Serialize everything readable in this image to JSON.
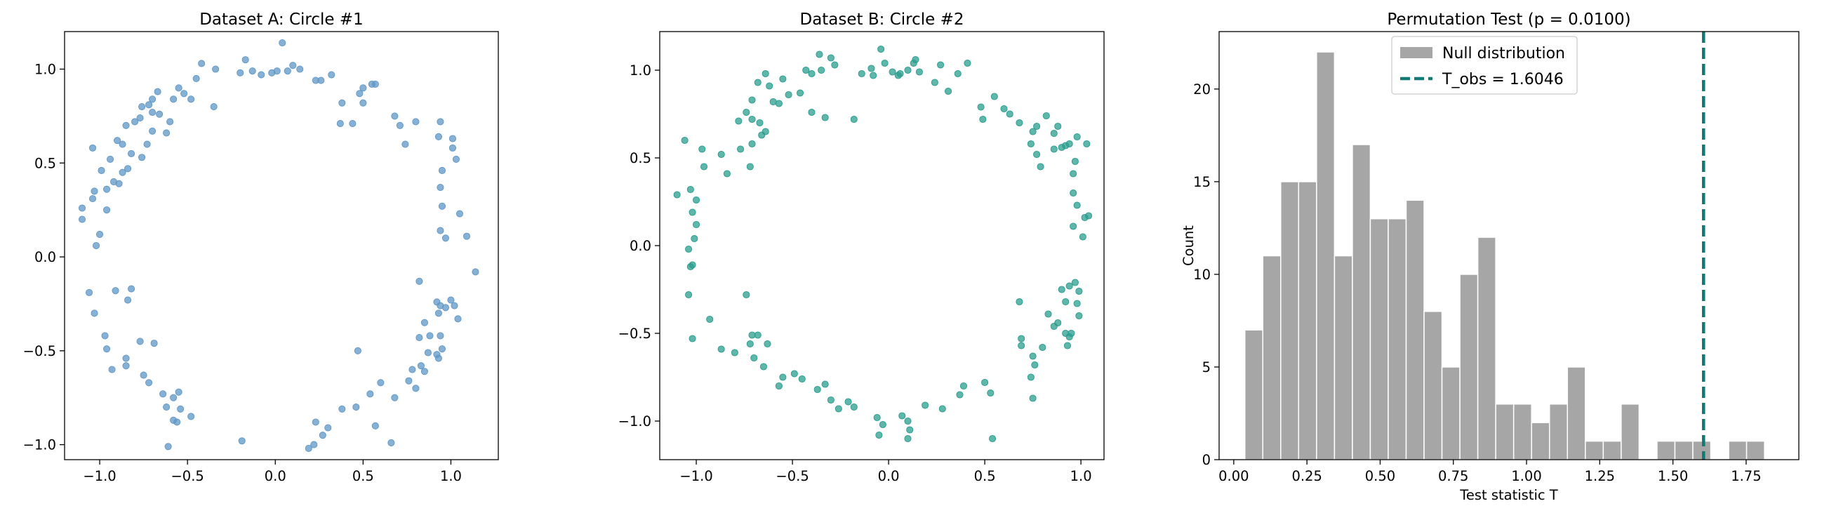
{
  "chart_data": [
    {
      "type": "scatter",
      "title": "Dataset A: Circle #1",
      "xlabel": "",
      "ylabel": "",
      "xlim": [
        -1.2,
        1.27
      ],
      "ylim": [
        -1.08,
        1.2
      ],
      "xticks": [
        -1.0,
        -0.5,
        0.0,
        0.5,
        1.0
      ],
      "xtick_labels": [
        "−1.0",
        "−0.5",
        "0.0",
        "0.5",
        "1.0"
      ],
      "yticks": [
        -1.0,
        -0.5,
        0.0,
        0.5,
        1.0
      ],
      "ytick_labels": [
        "−1.0",
        "−0.5",
        "0.0",
        "0.5",
        "1.0"
      ],
      "color": "#5f97c6",
      "points": [
        [
          0.04,
          1.14
        ],
        [
          -0.17,
          1.05
        ],
        [
          -0.13,
          0.99
        ],
        [
          -0.08,
          0.97
        ],
        [
          -0.02,
          0.98
        ],
        [
          0.01,
          0.99
        ],
        [
          0.07,
          0.99
        ],
        [
          0.1,
          1.02
        ],
        [
          -0.42,
          1.03
        ],
        [
          -0.34,
          1.0
        ],
        [
          -0.45,
          0.95
        ],
        [
          -0.52,
          0.87
        ],
        [
          -0.55,
          0.9
        ],
        [
          -0.48,
          0.84
        ],
        [
          -0.58,
          0.84
        ],
        [
          -0.35,
          0.8
        ],
        [
          -0.67,
          0.88
        ],
        [
          -0.7,
          0.84
        ],
        [
          -0.72,
          0.81
        ],
        [
          -0.66,
          0.76
        ],
        [
          -0.62,
          0.66
        ],
        [
          -0.6,
          0.72
        ],
        [
          -0.7,
          0.77
        ],
        [
          -0.76,
          0.8
        ],
        [
          -0.77,
          0.74
        ],
        [
          -0.8,
          0.72
        ],
        [
          -0.85,
          0.7
        ],
        [
          -0.87,
          0.6
        ],
        [
          -0.9,
          0.62
        ],
        [
          -0.94,
          0.52
        ],
        [
          -0.84,
          0.47
        ],
        [
          -0.87,
          0.45
        ],
        [
          -0.99,
          0.46
        ],
        [
          -0.92,
          0.4
        ],
        [
          -0.96,
          0.36
        ],
        [
          -1.03,
          0.35
        ],
        [
          -1.04,
          0.31
        ],
        [
          -0.96,
          0.25
        ],
        [
          -0.76,
          0.53
        ],
        [
          -0.73,
          0.6
        ],
        [
          -0.7,
          0.67
        ],
        [
          -1.04,
          0.58
        ],
        [
          -1.1,
          0.26
        ],
        [
          -1.1,
          0.2
        ],
        [
          -1.0,
          0.12
        ],
        [
          -1.02,
          0.06
        ],
        [
          -0.89,
          0.39
        ],
        [
          -0.82,
          0.55
        ],
        [
          -1.06,
          -0.19
        ],
        [
          -0.91,
          -0.18
        ],
        [
          -0.84,
          -0.23
        ],
        [
          -1.03,
          -0.3
        ],
        [
          -0.97,
          -0.42
        ],
        [
          -0.96,
          -0.49
        ],
        [
          -0.85,
          -0.54
        ],
        [
          -0.85,
          -0.58
        ],
        [
          -0.93,
          -0.6
        ],
        [
          -0.77,
          -0.45
        ],
        [
          -0.69,
          -0.46
        ],
        [
          -0.75,
          -0.63
        ],
        [
          -0.72,
          -0.67
        ],
        [
          -0.64,
          -0.73
        ],
        [
          -0.58,
          -0.75
        ],
        [
          -0.55,
          -0.72
        ],
        [
          -0.62,
          -0.8
        ],
        [
          -0.54,
          -0.81
        ],
        [
          -0.58,
          -0.87
        ],
        [
          -0.56,
          -0.88
        ],
        [
          -0.48,
          -0.85
        ],
        [
          -0.61,
          -1.01
        ],
        [
          -0.82,
          -0.17
        ],
        [
          -0.19,
          -0.98
        ],
        [
          0.19,
          -1.02
        ],
        [
          0.22,
          -1.0
        ],
        [
          0.27,
          -0.95
        ],
        [
          0.23,
          -0.88
        ],
        [
          0.3,
          -0.91
        ],
        [
          0.38,
          -0.81
        ],
        [
          0.46,
          -0.8
        ],
        [
          0.54,
          -0.73
        ],
        [
          0.57,
          -0.9
        ],
        [
          0.6,
          -0.67
        ],
        [
          0.68,
          -0.75
        ],
        [
          0.66,
          -0.99
        ],
        [
          0.47,
          -0.5
        ],
        [
          0.76,
          -0.66
        ],
        [
          0.78,
          -0.6
        ],
        [
          0.83,
          -0.58
        ],
        [
          0.85,
          -0.61
        ],
        [
          0.8,
          -0.7
        ],
        [
          0.87,
          -0.51
        ],
        [
          0.92,
          -0.52
        ],
        [
          0.94,
          -0.42
        ],
        [
          0.95,
          -0.49
        ],
        [
          0.93,
          -0.54
        ],
        [
          0.82,
          -0.43
        ],
        [
          0.85,
          -0.35
        ],
        [
          0.88,
          -0.42
        ],
        [
          0.82,
          -0.13
        ],
        [
          0.97,
          -0.27
        ],
        [
          1.0,
          -0.23
        ],
        [
          1.02,
          -0.26
        ],
        [
          1.04,
          -0.33
        ],
        [
          0.93,
          -0.3
        ],
        [
          0.92,
          -0.24
        ],
        [
          0.94,
          -0.26
        ],
        [
          1.14,
          -0.08
        ],
        [
          1.09,
          0.11
        ],
        [
          1.05,
          0.23
        ],
        [
          0.97,
          0.1
        ],
        [
          0.94,
          0.14
        ],
        [
          0.95,
          0.27
        ],
        [
          0.94,
          0.37
        ],
        [
          0.95,
          0.46
        ],
        [
          1.03,
          0.52
        ],
        [
          1.01,
          0.58
        ],
        [
          1.01,
          0.63
        ],
        [
          0.93,
          0.64
        ],
        [
          0.94,
          0.72
        ],
        [
          0.8,
          0.72
        ],
        [
          0.74,
          0.6
        ],
        [
          0.71,
          0.7
        ],
        [
          0.68,
          0.75
        ],
        [
          0.5,
          0.82
        ],
        [
          0.5,
          0.9
        ],
        [
          0.55,
          0.92
        ],
        [
          0.57,
          0.92
        ],
        [
          0.48,
          0.87
        ],
        [
          0.37,
          0.71
        ],
        [
          0.44,
          0.71
        ],
        [
          0.32,
          0.97
        ],
        [
          0.26,
          0.94
        ],
        [
          0.23,
          0.94
        ],
        [
          0.38,
          0.82
        ],
        [
          0.14,
          1.0
        ],
        [
          -0.2,
          0.98
        ]
      ]
    },
    {
      "type": "scatter",
      "title": "Dataset B: Circle #2",
      "xlabel": "",
      "ylabel": "",
      "xlim": [
        -1.19,
        1.12
      ],
      "ylim": [
        -1.22,
        1.22
      ],
      "xticks": [
        -1.0,
        -0.5,
        0.0,
        0.5,
        1.0
      ],
      "xtick_labels": [
        "−1.0",
        "−0.5",
        "0.0",
        "0.5",
        "1.0"
      ],
      "yticks": [
        -1.0,
        -0.5,
        0.0,
        0.5,
        1.0
      ],
      "ytick_labels": [
        "−1.0",
        "−0.5",
        "0.0",
        "0.5",
        "1.0"
      ],
      "color": "#2a9d8f",
      "points": [
        [
          -0.04,
          1.12
        ],
        [
          -0.09,
          1.01
        ],
        [
          -0.02,
          1.04
        ],
        [
          0.02,
          0.99
        ],
        [
          0.06,
          0.98
        ],
        [
          0.1,
          1.0
        ],
        [
          0.13,
          1.04
        ],
        [
          0.14,
          1.06
        ],
        [
          0.16,
          0.99
        ],
        [
          0.27,
          1.03
        ],
        [
          0.36,
          0.98
        ],
        [
          0.41,
          1.04
        ],
        [
          0.31,
          0.88
        ],
        [
          -0.36,
          1.09
        ],
        [
          -0.3,
          1.07
        ],
        [
          -0.28,
          1.03
        ],
        [
          -0.35,
          1.0
        ],
        [
          -0.43,
          1.0
        ],
        [
          -0.4,
          0.98
        ],
        [
          -0.46,
          0.87
        ],
        [
          -0.52,
          0.86
        ],
        [
          -0.55,
          0.95
        ],
        [
          -0.62,
          0.91
        ],
        [
          -0.6,
          0.82
        ],
        [
          -0.68,
          0.93
        ],
        [
          -0.64,
          0.98
        ],
        [
          -0.71,
          0.83
        ],
        [
          -0.67,
          0.7
        ],
        [
          -0.64,
          0.65
        ],
        [
          -0.71,
          0.72
        ],
        [
          -0.74,
          0.76
        ],
        [
          -0.78,
          0.71
        ],
        [
          -0.77,
          0.55
        ],
        [
          -0.71,
          0.58
        ],
        [
          -0.72,
          0.45
        ],
        [
          -0.84,
          0.41
        ],
        [
          -0.87,
          0.52
        ],
        [
          -0.97,
          0.55
        ],
        [
          -0.96,
          0.45
        ],
        [
          -1.1,
          0.29
        ],
        [
          -1.03,
          0.32
        ],
        [
          -1.0,
          0.26
        ],
        [
          -1.02,
          0.19
        ],
        [
          -1.0,
          0.12
        ],
        [
          -1.06,
          0.6
        ],
        [
          -1.04,
          -0.02
        ],
        [
          -1.02,
          -0.11
        ],
        [
          -1.03,
          -0.12
        ],
        [
          -1.01,
          0.04
        ],
        [
          -1.04,
          -0.28
        ],
        [
          -1.02,
          -0.53
        ],
        [
          -0.93,
          -0.42
        ],
        [
          -0.87,
          -0.59
        ],
        [
          -0.8,
          -0.61
        ],
        [
          -0.72,
          -0.56
        ],
        [
          -0.71,
          -0.51
        ],
        [
          -0.7,
          -0.64
        ],
        [
          -0.68,
          -0.51
        ],
        [
          -0.74,
          -0.28
        ],
        [
          -0.63,
          -0.56
        ],
        [
          -0.65,
          -0.69
        ],
        [
          -0.57,
          -0.8
        ],
        [
          -0.55,
          -0.75
        ],
        [
          -0.49,
          -0.73
        ],
        [
          -0.45,
          -0.76
        ],
        [
          -0.37,
          -0.82
        ],
        [
          -0.33,
          -0.79
        ],
        [
          -0.3,
          -0.88
        ],
        [
          -0.26,
          -0.93
        ],
        [
          -0.18,
          -0.92
        ],
        [
          -0.21,
          -0.89
        ],
        [
          -0.06,
          -0.98
        ],
        [
          -0.03,
          -1.02
        ],
        [
          -0.05,
          -1.08
        ],
        [
          0.07,
          -0.97
        ],
        [
          0.1,
          -1.0
        ],
        [
          0.11,
          -1.05
        ],
        [
          0.1,
          -1.1
        ],
        [
          0.19,
          -0.91
        ],
        [
          0.28,
          -0.93
        ],
        [
          0.37,
          -0.85
        ],
        [
          0.39,
          -0.8
        ],
        [
          0.53,
          -0.84
        ],
        [
          0.5,
          -0.78
        ],
        [
          0.54,
          -1.1
        ],
        [
          0.69,
          -0.57
        ],
        [
          0.69,
          -0.53
        ],
        [
          0.75,
          -0.63
        ],
        [
          0.76,
          -0.68
        ],
        [
          0.8,
          -0.58
        ],
        [
          0.83,
          -0.39
        ],
        [
          0.86,
          -0.46
        ],
        [
          0.88,
          -0.44
        ],
        [
          0.92,
          -0.5
        ],
        [
          0.93,
          -0.57
        ],
        [
          0.95,
          -0.5
        ],
        [
          0.92,
          -0.32
        ],
        [
          0.9,
          -0.25
        ],
        [
          0.94,
          -0.23
        ],
        [
          0.97,
          -0.21
        ],
        [
          0.99,
          -0.26
        ],
        [
          0.98,
          -0.33
        ],
        [
          0.99,
          -0.4
        ],
        [
          0.94,
          -0.52
        ],
        [
          0.68,
          -0.32
        ],
        [
          0.74,
          -0.75
        ],
        [
          0.75,
          -0.87
        ],
        [
          1.01,
          0.05
        ],
        [
          1.02,
          0.16
        ],
        [
          1.04,
          0.17
        ],
        [
          0.96,
          0.11
        ],
        [
          0.98,
          0.23
        ],
        [
          0.96,
          0.3
        ],
        [
          0.96,
          0.41
        ],
        [
          0.97,
          0.48
        ],
        [
          1.03,
          0.58
        ],
        [
          0.98,
          0.62
        ],
        [
          0.94,
          0.58
        ],
        [
          0.92,
          0.57
        ],
        [
          0.86,
          0.55
        ],
        [
          0.79,
          0.45
        ],
        [
          0.77,
          0.52
        ],
        [
          0.74,
          0.58
        ],
        [
          0.75,
          0.65
        ],
        [
          0.77,
          0.68
        ],
        [
          0.82,
          0.74
        ],
        [
          0.86,
          0.64
        ],
        [
          0.88,
          0.68
        ],
        [
          0.9,
          0.56
        ],
        [
          0.68,
          0.7
        ],
        [
          0.63,
          0.75
        ],
        [
          0.6,
          0.78
        ],
        [
          0.55,
          0.85
        ],
        [
          0.49,
          0.72
        ],
        [
          0.48,
          0.79
        ],
        [
          0.24,
          0.93
        ],
        [
          -0.08,
          0.97
        ],
        [
          -0.14,
          0.98
        ],
        [
          0.05,
          0.97
        ],
        [
          -0.18,
          0.72
        ],
        [
          -0.33,
          0.73
        ],
        [
          -0.4,
          0.76
        ],
        [
          -0.57,
          0.81
        ],
        [
          -0.66,
          0.63
        ]
      ]
    },
    {
      "type": "bar",
      "title": "Permutation Test (p = 0.0100)",
      "xlabel": "Test statistic T",
      "ylabel": "Count",
      "xlim": [
        -0.05,
        1.93
      ],
      "ylim": [
        0,
        23.1
      ],
      "xticks": [
        0.0,
        0.25,
        0.5,
        0.75,
        1.0,
        1.25,
        1.5,
        1.75
      ],
      "xtick_labels": [
        "0.00",
        "0.25",
        "0.50",
        "0.75",
        "1.00",
        "1.25",
        "1.50",
        "1.75"
      ],
      "yticks": [
        0,
        5,
        10,
        15,
        20
      ],
      "ytick_labels": [
        "0",
        "5",
        "10",
        "15",
        "20"
      ],
      "bin_start": 0.038,
      "bin_width": 0.0612,
      "counts": [
        7,
        11,
        15,
        15,
        22,
        11,
        17,
        13,
        13,
        14,
        8,
        5,
        10,
        12,
        3,
        3,
        2,
        3,
        5,
        1,
        1,
        3,
        0,
        1,
        1,
        1,
        0,
        1,
        1
      ],
      "bar_color": "#a6a6a6",
      "t_obs": 1.6046,
      "t_obs_color": "#117a74",
      "legend": {
        "position": "upper center",
        "entries": [
          "Null distribution",
          "T_obs = 1.6046"
        ]
      }
    }
  ]
}
